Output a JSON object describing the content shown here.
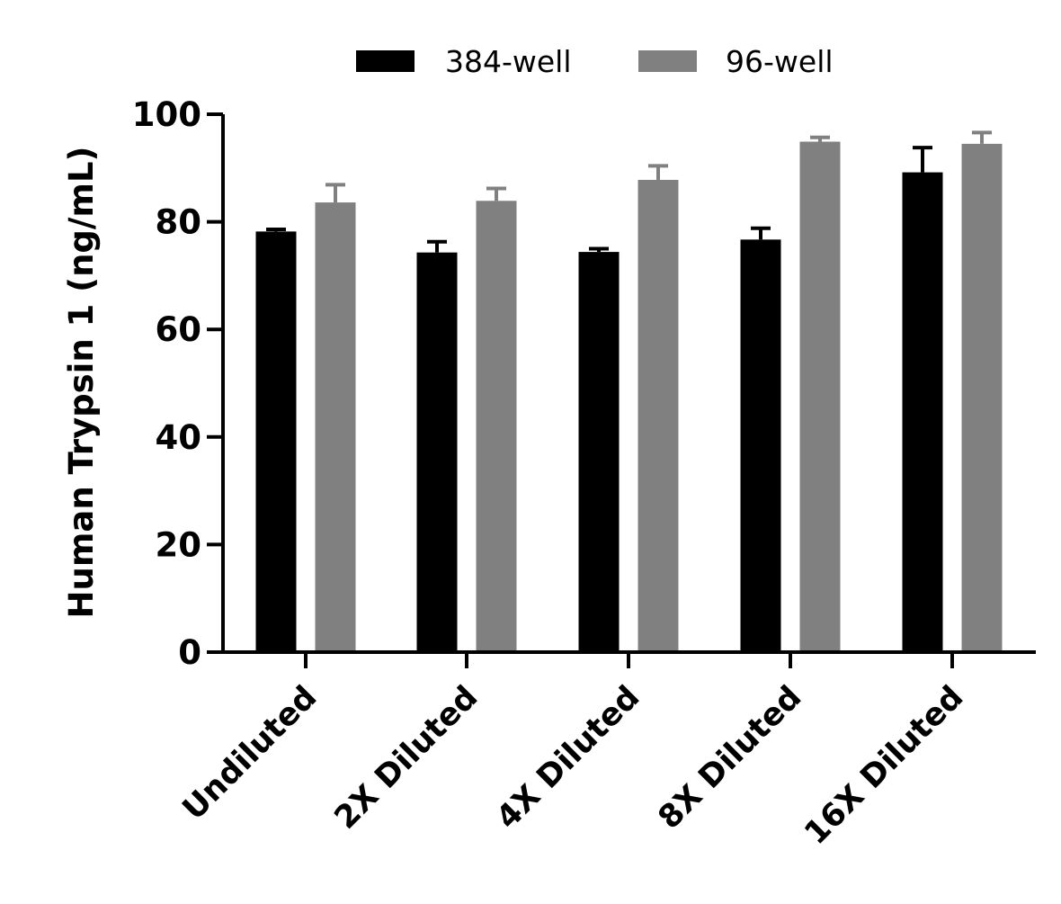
{
  "chart_data": {
    "type": "bar",
    "categories": [
      "Undiluted",
      "2X Diluted",
      "4X Diluted",
      "8X Diluted",
      "16X Diluted"
    ],
    "series": [
      {
        "name": "384-well",
        "color": "#000000",
        "values": [
          78.2,
          74.3,
          74.4,
          76.7,
          89.2
        ],
        "errors": [
          0.4,
          2.0,
          0.6,
          2.1,
          4.6
        ]
      },
      {
        "name": "96-well",
        "color": "#808080",
        "values": [
          83.6,
          83.9,
          87.8,
          94.9,
          94.5
        ],
        "errors": [
          3.3,
          2.3,
          2.6,
          0.8,
          2.1
        ]
      }
    ],
    "ylabel": "Human Trypsin 1 (ng/mL)",
    "xlabel": "",
    "ylim": [
      0,
      100
    ],
    "yticks": [
      0,
      20,
      40,
      60,
      80,
      100
    ],
    "legend_position": "top",
    "grid": false
  }
}
